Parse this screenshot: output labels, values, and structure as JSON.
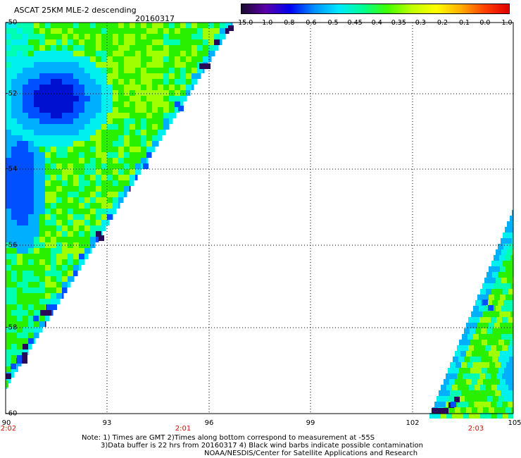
{
  "header": {
    "title": "ASCAT 25KM MLE-2 descending",
    "date": "20160317"
  },
  "colorbar": {
    "ticks": [
      "-15.0",
      "-1.0",
      "-0.8",
      "-0.6",
      "-0.5",
      "-0.45",
      "-0.4",
      "-0.35",
      "-0.3",
      "-0.2",
      "-0.1",
      "0.0",
      "1.0"
    ],
    "colors": [
      "#1a0a2e",
      "#5a00a8",
      "#0000f0",
      "#0090ff",
      "#00e8ff",
      "#00ff90",
      "#40ff00",
      "#c0ff00",
      "#ffff00",
      "#ffb000",
      "#ff4000",
      "#e00000"
    ]
  },
  "map": {
    "lat_labels": [
      "-50",
      "-52",
      "-54",
      "-56",
      "-58",
      "-60"
    ],
    "lon_labels": [
      "90",
      "93",
      "96",
      "99",
      "102",
      "105"
    ],
    "time_labels": [
      "2:02",
      "2:01",
      "2:03"
    ],
    "colors": {
      "green": "#28f000",
      "lime": "#a0ff00",
      "teal": "#00ffb0",
      "cyan": "#00f0f0",
      "lightblue": "#00b0ff",
      "blue": "#0050ff",
      "darkblue": "#0010d0",
      "purple": "#2a0858"
    }
  },
  "notes": {
    "line1": "Note: 1) Times are GMT 2)Times along bottom correspond to measurement at -55S",
    "line2": "3)Data buffer is 22 hrs from 20160317 4) Black wind barbs indicate possible contamination",
    "line3": "NOAA/NESDIS/Center for Satellite Applications and Research"
  }
}
